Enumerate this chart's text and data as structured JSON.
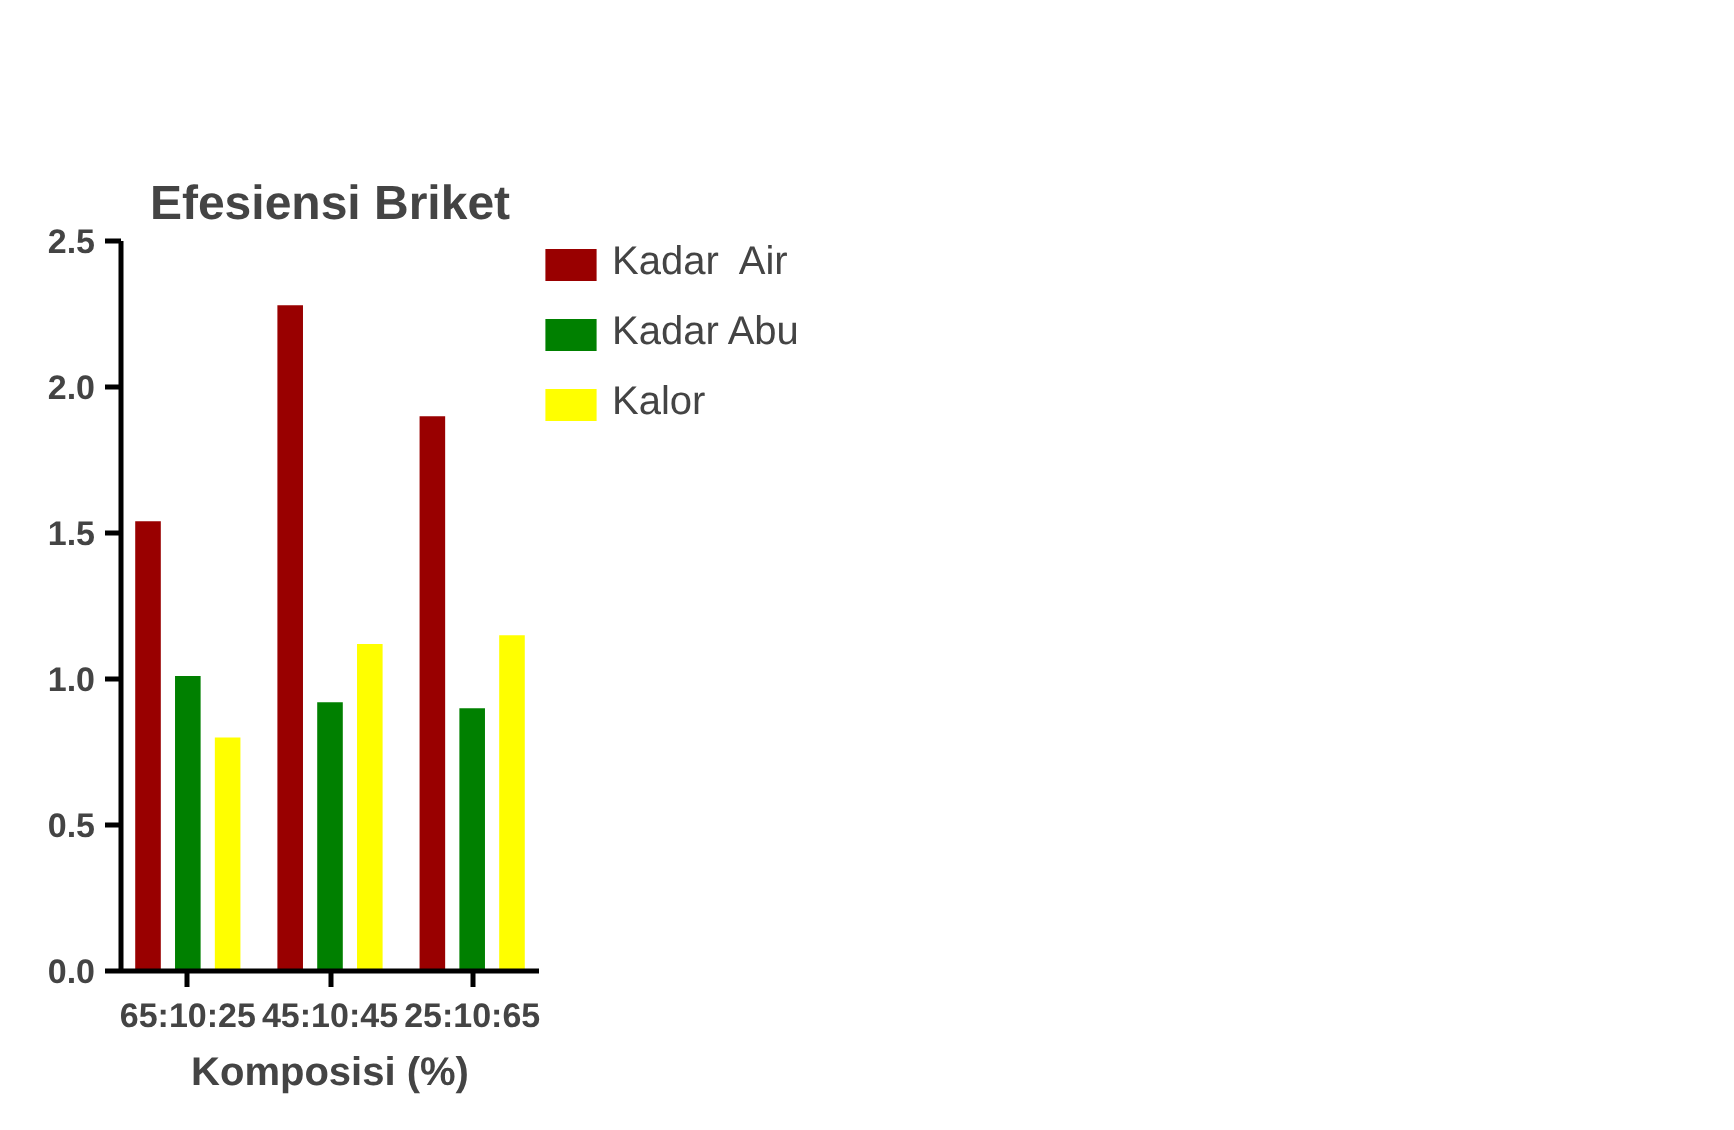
{
  "chart_data": {
    "type": "bar",
    "title": "Efesiensi Briket",
    "xlabel": "Komposisi (%)",
    "categories": [
      "65:10:25",
      "45:10:45",
      "25:10:65"
    ],
    "series": [
      {
        "name": "Kadar  Air",
        "color": "#990000",
        "values": [
          1.54,
          2.28,
          1.9
        ]
      },
      {
        "name": "Kadar Abu",
        "color": "#008000",
        "values": [
          1.01,
          0.92,
          0.9
        ]
      },
      {
        "name": "Kalor",
        "color": "#ffff00",
        "values": [
          0.8,
          1.12,
          1.15
        ]
      }
    ],
    "ylim": [
      0,
      2.5
    ],
    "yticks": [
      {
        "value": 0,
        "label": "0.0"
      },
      {
        "value": 0.5,
        "label": "0.5"
      },
      {
        "value": 1,
        "label": "1.0"
      },
      {
        "value": 1.5,
        "label": "1.5"
      },
      {
        "value": 2,
        "label": "2.0"
      },
      {
        "value": 2.5,
        "label": "2.5"
      }
    ],
    "grid": false,
    "legend": "top right"
  }
}
